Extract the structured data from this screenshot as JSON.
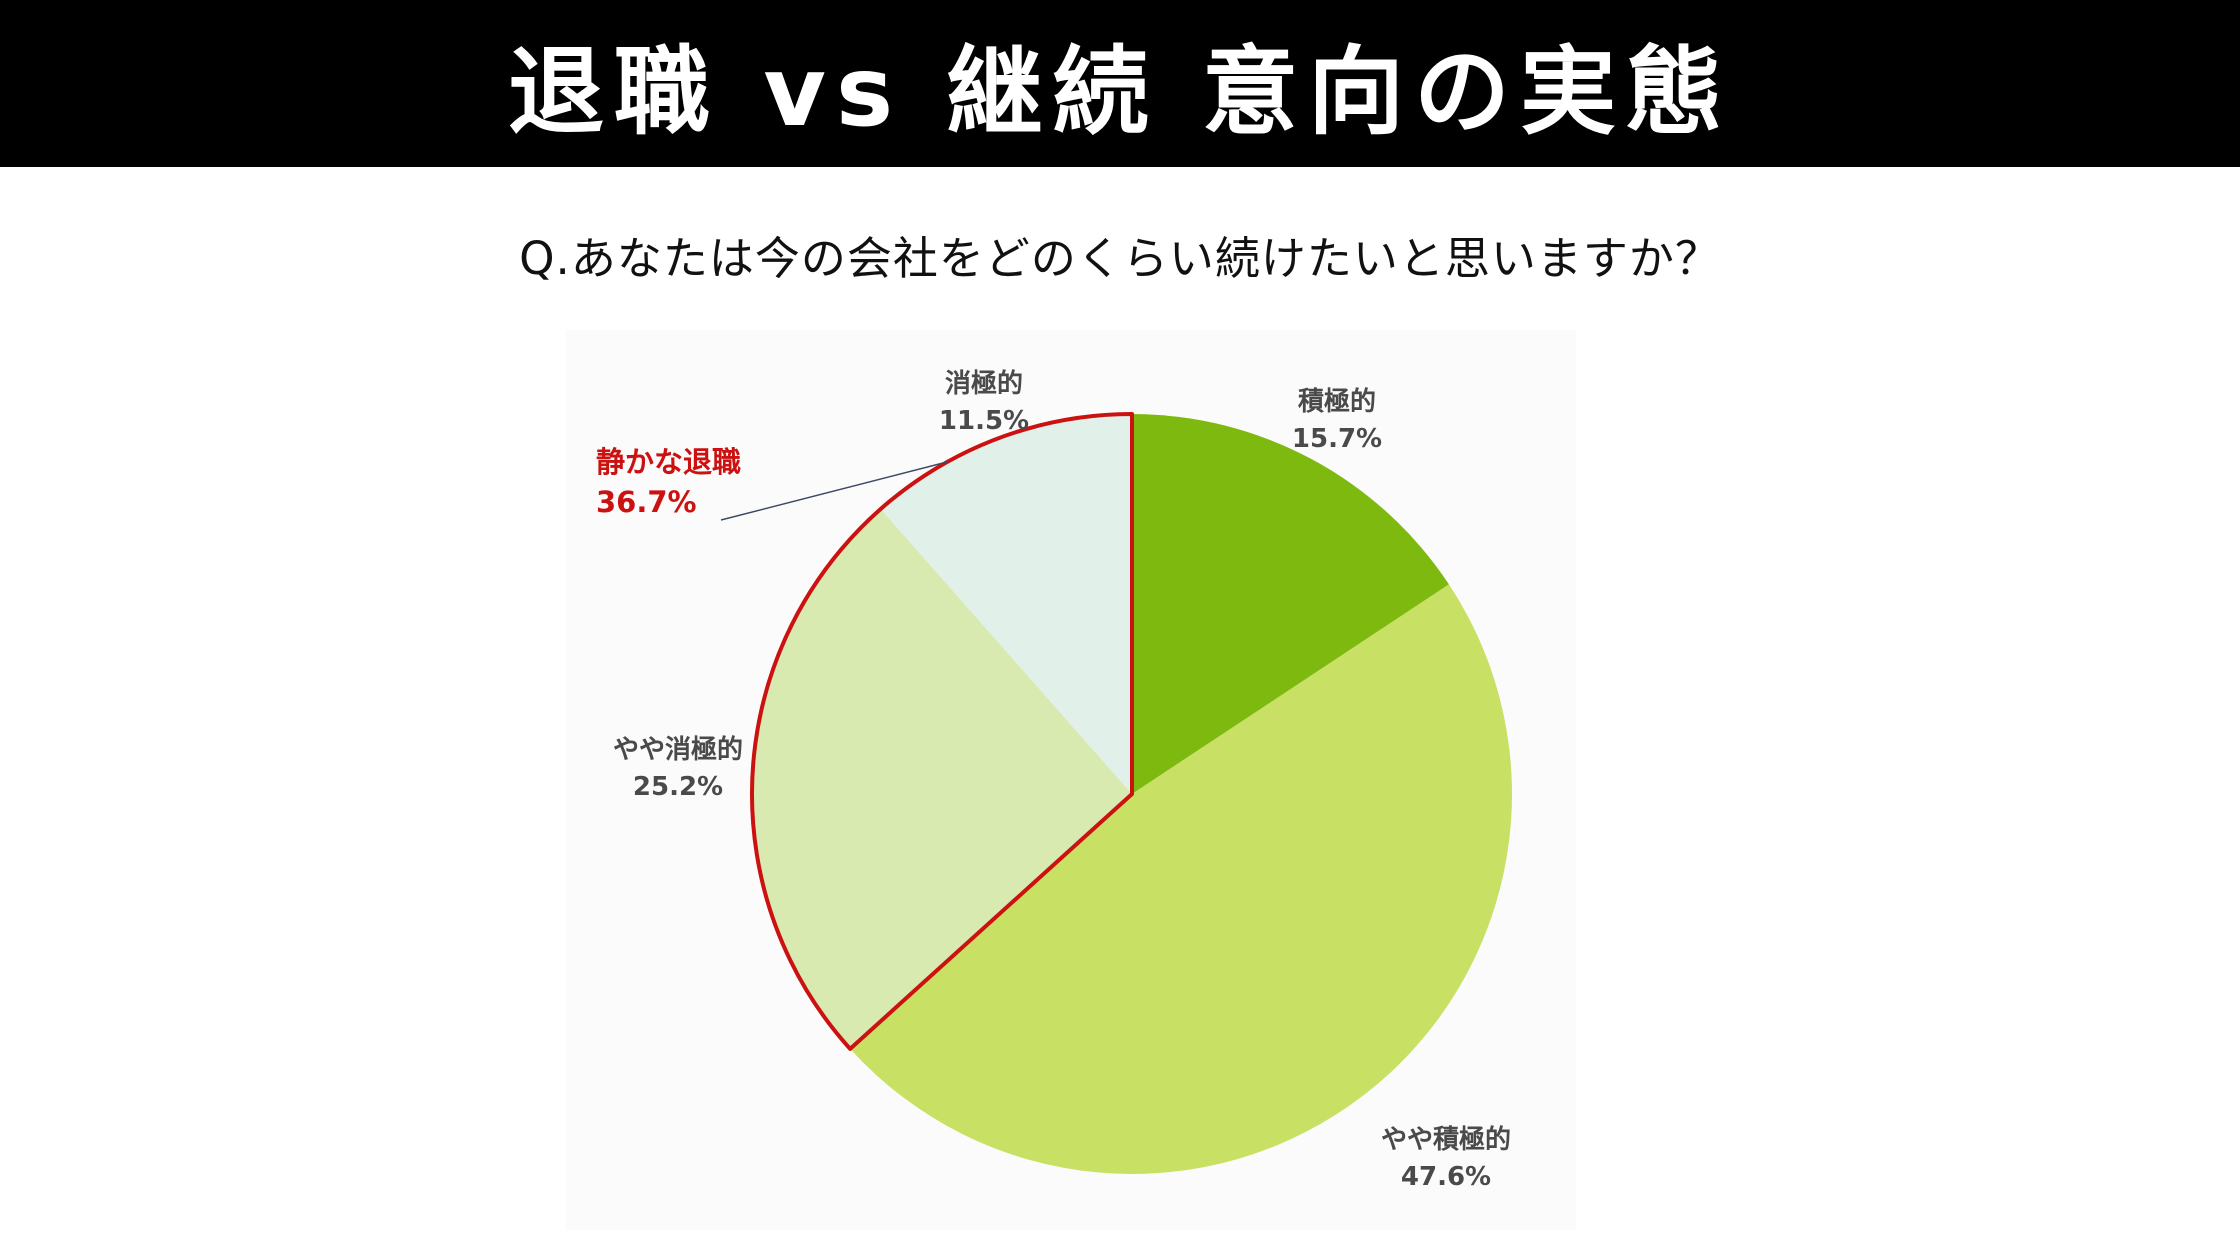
{
  "header": {
    "title": "退職 vs 継続 意向の実態"
  },
  "question": "Q.あなたは今の会社をどのくらい続けたいと思いますか？",
  "colors": {
    "header_bg": "#000000",
    "header_text": "#ffffff",
    "highlight": "#cc1111"
  },
  "chart_data": {
    "type": "pie",
    "title": "",
    "start_angle_deg": 0,
    "direction": "clockwise",
    "slices": [
      {
        "label": "積極的",
        "value": 15.7,
        "value_text": "15.7%",
        "color": "#7db90f"
      },
      {
        "label": "やや積極的",
        "value": 47.6,
        "value_text": "47.6%",
        "color": "#c8e064"
      },
      {
        "label": "やや消極的",
        "value": 25.2,
        "value_text": "25.2%",
        "color": "#d9eab1"
      },
      {
        "label": "消極的",
        "value": 11.5,
        "value_text": "11.5%",
        "color": "#e1f1ea"
      }
    ],
    "annotation": {
      "label": "静かな退職",
      "value": 36.7,
      "value_text": "36.7%",
      "covers": [
        "やや消極的",
        "消極的"
      ],
      "outline_color": "#cc1111"
    }
  }
}
